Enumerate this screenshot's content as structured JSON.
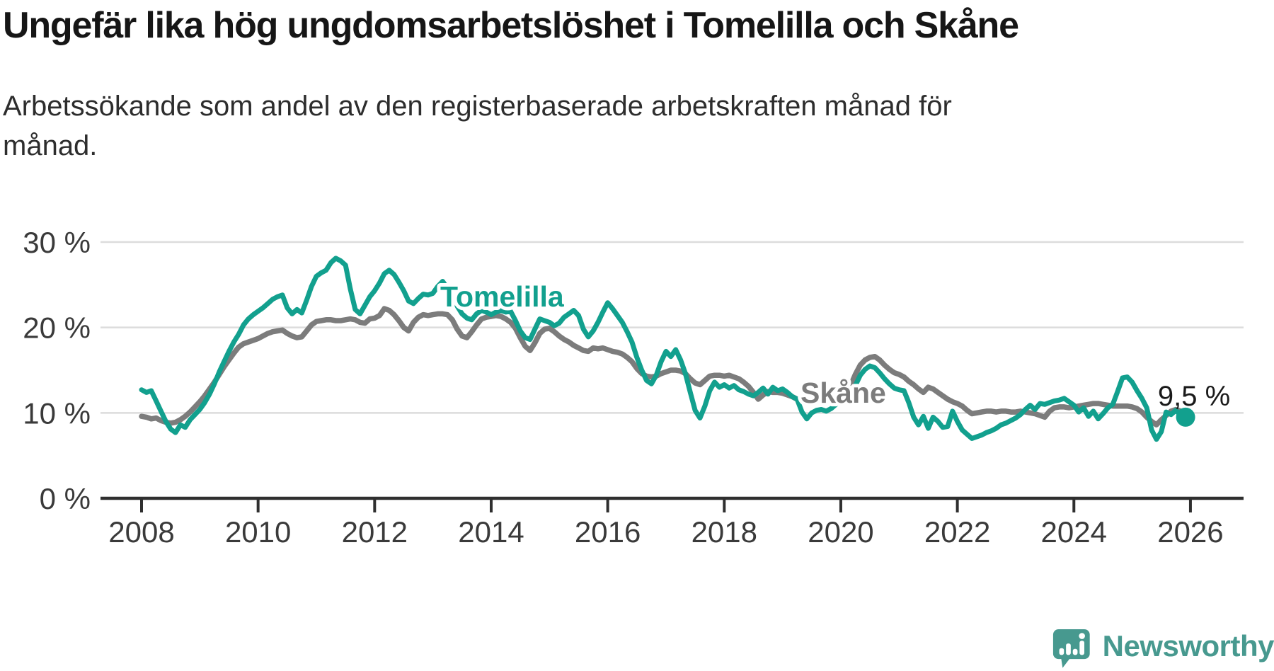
{
  "title": "Ungefär lika hög ungdomsarbetslöshet i Tomelilla och Skåne",
  "subtitle": "Arbetssökande som andel av den registerbaserade arbetskraften månad för månad.",
  "branding": {
    "name": "Newsworthy",
    "logo_icon": "speech-bubble-bar-chart-icon",
    "logo_color": "#47998f"
  },
  "colors": {
    "tomelilla": "#12a08e",
    "skane": "#7c7c7c",
    "grid": "#dcdcdc",
    "axis": "#2f2f2f",
    "tick_text": "#3a3a3a",
    "annotation_text": "#1a1a1a",
    "background": "#ffffff"
  },
  "chart_data": {
    "type": "line",
    "title": "Ungefär lika hög ungdomsarbetslöshet i Tomelilla och Skåne",
    "subtitle": "Arbetssökande som andel av den registerbaserade arbetskraften månad för månad.",
    "x_start": "2008-01",
    "x_step_months": 1,
    "x_end": "2025-12",
    "x_tick_years": [
      2008,
      2010,
      2012,
      2014,
      2016,
      2018,
      2020,
      2022,
      2024,
      2026
    ],
    "x_tick_labels": [
      "2008",
      "2010",
      "2012",
      "2014",
      "2016",
      "2018",
      "2020",
      "2022",
      "2024",
      "2026"
    ],
    "y_ticks": [
      {
        "value": 0,
        "label": "0 %"
      },
      {
        "value": 10,
        "label": "10 %"
      },
      {
        "value": 20,
        "label": "20 %"
      },
      {
        "value": 30,
        "label": "30 %"
      }
    ],
    "ylim": [
      0,
      33
    ],
    "grid": "horizontal",
    "legend_position": "inline-labels",
    "series": [
      {
        "name": "Tomelilla",
        "color": "#12a08e",
        "values": [
          12.7,
          12.4,
          12.6,
          11.4,
          10.2,
          9.0,
          8.1,
          7.7,
          8.6,
          8.3,
          9.2,
          9.8,
          10.4,
          11.2,
          12.2,
          13.4,
          14.8,
          16.0,
          17.2,
          18.3,
          19.2,
          20.3,
          21.0,
          21.5,
          21.9,
          22.3,
          22.8,
          23.3,
          23.6,
          23.8,
          22.3,
          21.6,
          22.1,
          21.7,
          23.2,
          24.8,
          26.0,
          26.4,
          26.7,
          27.6,
          28.1,
          27.8,
          27.3,
          24.5,
          22.1,
          21.6,
          22.6,
          23.6,
          24.3,
          25.2,
          26.3,
          26.7,
          26.2,
          25.3,
          24.3,
          23.1,
          22.8,
          23.4,
          23.9,
          23.8,
          24.0,
          24.8,
          25.4,
          24.6,
          23.6,
          22.5,
          21.6,
          21.1,
          20.9,
          21.6,
          22.0,
          21.8,
          21.5,
          21.8,
          22.0,
          21.8,
          21.9,
          20.8,
          19.6,
          18.8,
          18.6,
          19.8,
          21.0,
          20.8,
          20.6,
          20.2,
          20.5,
          21.2,
          21.6,
          22.0,
          21.4,
          19.8,
          18.9,
          19.6,
          20.6,
          21.8,
          22.9,
          22.2,
          21.4,
          20.6,
          19.5,
          18.3,
          16.5,
          15.0,
          13.8,
          13.4,
          14.4,
          16.0,
          17.2,
          16.6,
          17.4,
          16.2,
          14.6,
          12.4,
          10.3,
          9.4,
          10.8,
          12.6,
          13.6,
          13.0,
          13.3,
          12.9,
          13.2,
          12.7,
          12.5,
          12.2,
          12.0,
          12.4,
          12.9,
          12.2,
          13.0,
          12.6,
          12.8,
          12.4,
          11.9,
          11.6,
          10.1,
          9.3,
          10.0,
          10.3,
          10.4,
          10.2,
          10.5,
          11.0,
          11.3,
          11.6,
          12.0,
          13.2,
          14.4,
          15.1,
          15.5,
          15.3,
          14.7,
          14.0,
          13.4,
          12.9,
          12.7,
          12.6,
          11.2,
          9.5,
          8.6,
          9.6,
          8.2,
          9.5,
          9.0,
          8.3,
          8.4,
          10.2,
          9.0,
          8.0,
          7.5,
          7.0,
          7.2,
          7.4,
          7.7,
          7.9,
          8.2,
          8.6,
          8.8,
          9.1,
          9.4,
          9.8,
          10.4,
          10.9,
          10.4,
          11.1,
          11.0,
          11.2,
          11.4,
          11.5,
          11.7,
          11.3,
          10.9,
          10.1,
          10.6,
          9.6,
          10.2,
          9.3,
          9.9,
          10.6,
          11.0,
          12.5,
          14.1,
          14.2,
          13.6,
          12.6,
          11.7,
          10.6,
          8.0,
          6.9,
          7.8,
          10.1,
          9.8,
          10.3,
          9.7,
          9.5
        ]
      },
      {
        "name": "Skåne",
        "color": "#7c7c7c",
        "values": [
          9.6,
          9.5,
          9.3,
          9.4,
          9.1,
          8.9,
          8.8,
          8.9,
          9.2,
          9.6,
          10.1,
          10.7,
          11.3,
          12.0,
          12.8,
          13.6,
          14.5,
          15.4,
          16.2,
          17.0,
          17.7,
          18.1,
          18.3,
          18.5,
          18.7,
          19.0,
          19.3,
          19.5,
          19.6,
          19.7,
          19.3,
          19.0,
          18.8,
          18.9,
          19.6,
          20.3,
          20.7,
          20.8,
          20.9,
          20.9,
          20.8,
          20.8,
          20.9,
          21.0,
          20.9,
          20.6,
          20.5,
          21.0,
          21.1,
          21.4,
          22.2,
          22.0,
          21.5,
          20.8,
          20.0,
          19.6,
          20.6,
          21.2,
          21.5,
          21.4,
          21.5,
          21.6,
          21.6,
          21.5,
          20.9,
          19.8,
          19.0,
          18.8,
          19.5,
          20.3,
          21.0,
          21.2,
          21.3,
          21.4,
          21.3,
          21.0,
          20.6,
          19.9,
          18.8,
          17.8,
          17.3,
          18.2,
          19.3,
          19.8,
          19.9,
          19.5,
          19.0,
          18.6,
          18.3,
          17.9,
          17.6,
          17.3,
          17.2,
          17.6,
          17.5,
          17.6,
          17.4,
          17.2,
          17.1,
          16.9,
          16.5,
          16.0,
          15.2,
          14.6,
          14.3,
          14.2,
          14.3,
          14.6,
          14.8,
          15.0,
          15.0,
          14.9,
          14.6,
          14.0,
          13.5,
          13.3,
          13.8,
          14.3,
          14.4,
          14.4,
          14.3,
          14.4,
          14.2,
          14.0,
          13.6,
          13.1,
          12.4,
          11.6,
          12.1,
          12.5,
          12.4,
          12.4,
          12.3,
          12.1,
          11.9,
          11.6,
          11.4,
          11.3,
          11.2,
          11.4,
          11.6,
          12.0,
          12.3,
          12.5,
          12.6,
          12.7,
          13.2,
          14.5,
          15.6,
          16.2,
          16.5,
          16.6,
          16.2,
          15.6,
          15.1,
          14.7,
          14.5,
          14.2,
          13.7,
          13.3,
          12.8,
          12.4,
          13.0,
          12.8,
          12.4,
          12.0,
          11.6,
          11.3,
          11.1,
          10.8,
          10.3,
          9.9,
          10.0,
          10.1,
          10.2,
          10.2,
          10.1,
          10.2,
          10.2,
          10.1,
          10.1,
          10.2,
          10.1,
          10.0,
          9.9,
          9.7,
          9.5,
          10.2,
          10.6,
          10.7,
          10.7,
          10.6,
          10.7,
          10.8,
          10.9,
          11.0,
          11.1,
          11.1,
          11.0,
          10.9,
          10.8,
          10.8,
          10.8,
          10.8,
          10.7,
          10.5,
          10.1,
          9.5,
          9.0,
          8.6,
          9.2,
          9.7,
          10.2,
          10.4,
          10.2,
          10.0
        ]
      }
    ],
    "end_dot": {
      "series": "Tomelilla",
      "value": 9.5,
      "label": "9,5 %"
    }
  }
}
